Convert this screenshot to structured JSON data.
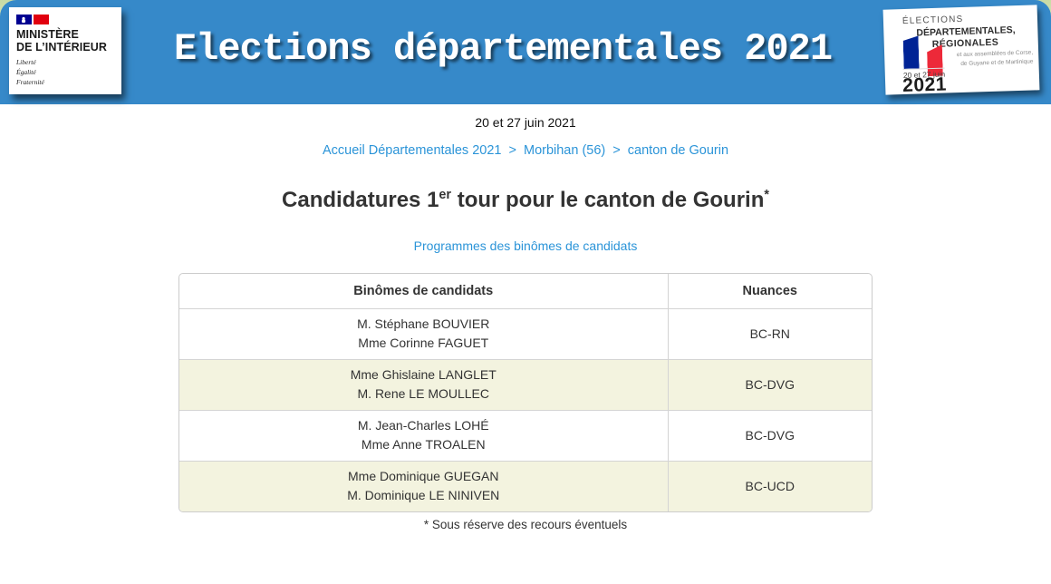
{
  "banner": {
    "title": "Elections départementales 2021",
    "bg_color": "#3689c9",
    "link_color": "#2b94d8",
    "ministry_card": {
      "name_line1": "MINISTÈRE",
      "name_line2": "DE L’INTÉRIEUR",
      "motto_line1": "Liberté",
      "motto_line2": "Égalité",
      "motto_line3": "Fraternité"
    },
    "elections_card": {
      "line1": "ÉLECTIONS",
      "line2": "DÉPARTEMENTALES,",
      "line3": "RÉGIONALES",
      "note_line1": "et aux assemblées de Corse,",
      "note_line2": "de Guyane et de Martinique",
      "dates": "20 et 27 juin",
      "year": "2021"
    }
  },
  "subheader": {
    "date_line": "20 et 27 juin 2021",
    "breadcrumb": {
      "separator": ">",
      "items": [
        {
          "label": "Accueil Départementales 2021"
        },
        {
          "label": "Morbihan (56)"
        },
        {
          "label": "canton de Gourin"
        }
      ]
    }
  },
  "main": {
    "heading": {
      "prefix": "Candidatures 1",
      "sup1": "er",
      "middle": " tour pour le canton de Gourin",
      "sup2": "*"
    },
    "program_link": "Programmes des binômes de candidats",
    "table": {
      "headers": [
        "Binômes de candidats",
        "Nuances"
      ],
      "shaded_row_color": "#f3f3df",
      "rows": [
        {
          "candidates": [
            "M. Stéphane BOUVIER",
            "Mme Corinne FAGUET"
          ],
          "nuance": "BC-RN",
          "shaded": false
        },
        {
          "candidates": [
            "Mme Ghislaine LANGLET",
            "M. Rene LE MOULLEC"
          ],
          "nuance": "BC-DVG",
          "shaded": true
        },
        {
          "candidates": [
            "M. Jean-Charles LOHÉ",
            "Mme Anne TROALEN"
          ],
          "nuance": "BC-DVG",
          "shaded": false
        },
        {
          "candidates": [
            "Mme Dominique GUEGAN",
            "M. Dominique LE NINIVEN"
          ],
          "nuance": "BC-UCD",
          "shaded": true
        }
      ]
    },
    "footnote": "* Sous réserve des recours éventuels"
  }
}
